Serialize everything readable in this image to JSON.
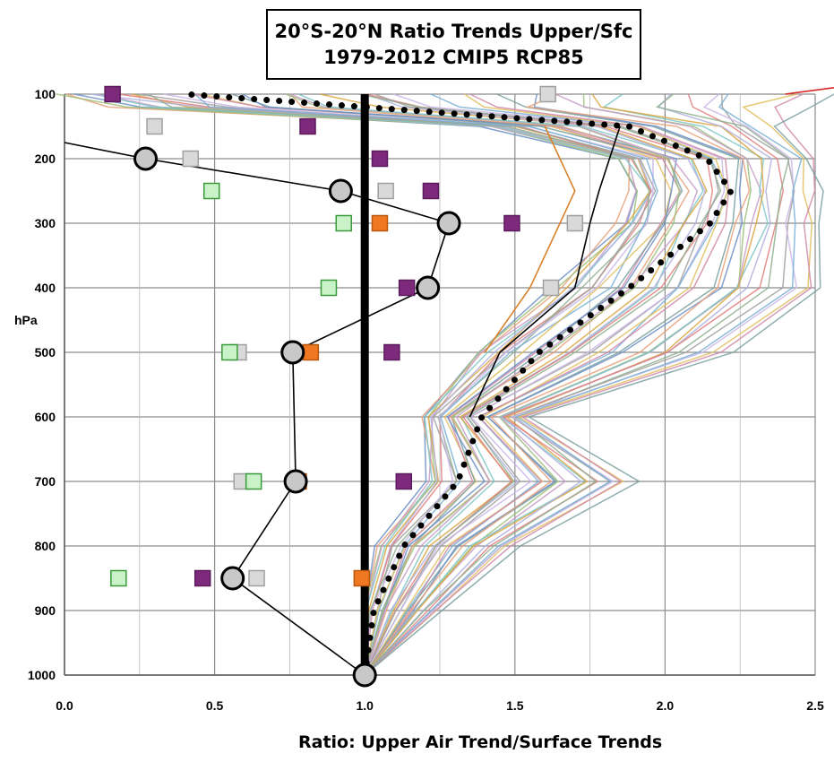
{
  "chart_data": {
    "type": "line",
    "title": [
      "20°S-20°N Ratio  Trends Upper/Sfc",
      "1979-2012 CMIP5 RCP85"
    ],
    "xlabel": "Ratio: Upper Air Trend/Surface Trends",
    "ylabel": "hPa",
    "xlim": [
      0,
      2.5
    ],
    "ylim": [
      1000,
      100
    ],
    "x_ticks": [
      "0.0",
      "0.5",
      "1.0",
      "1.5",
      "2.0",
      "2.5"
    ],
    "y_ticks": [
      "100",
      "200",
      "300",
      "400",
      "500",
      "600",
      "700",
      "800",
      "900",
      "1000"
    ],
    "grid": true,
    "legend": "none",
    "reference_line": {
      "x": 1.0,
      "color": "#000000"
    },
    "model_mean": {
      "style": "dotted",
      "color": "#000000",
      "points": [
        [
          1.0,
          1000
        ],
        [
          1.03,
          900
        ],
        [
          1.13,
          800
        ],
        [
          1.31,
          700
        ],
        [
          1.39,
          600
        ],
        [
          1.58,
          500
        ],
        [
          1.88,
          400
        ],
        [
          2.15,
          300
        ],
        [
          2.22,
          250
        ],
        [
          2.14,
          200
        ],
        [
          1.88,
          150
        ],
        [
          1.0,
          120
        ],
        [
          0.4,
          100
        ]
      ]
    },
    "model_spread_colors": [
      "#6b8fc7",
      "#e8a07a",
      "#9cc07a",
      "#c79dc7",
      "#7fc7c7",
      "#d9a441",
      "#b0b0e0",
      "#e08080",
      "#8fb08f",
      "#a0a0a0",
      "#c9b6e8",
      "#79b0d6",
      "#e0c060",
      "#d08aa8",
      "#7aa0a0"
    ],
    "model_envelope": {
      "x_min": [
        [
          1.0,
          1000
        ],
        [
          1.0,
          900
        ],
        [
          1.05,
          800
        ],
        [
          1.22,
          700
        ],
        [
          1.2,
          600
        ],
        [
          1.38,
          500
        ],
        [
          1.65,
          400
        ],
        [
          1.85,
          300
        ],
        [
          1.9,
          250
        ],
        [
          1.85,
          200
        ],
        [
          1.4,
          150
        ],
        [
          0.2,
          120
        ],
        [
          0.0,
          100
        ]
      ],
      "x_max": [
        [
          1.0,
          1000
        ],
        [
          1.25,
          900
        ],
        [
          1.5,
          800
        ],
        [
          1.9,
          700
        ],
        [
          1.55,
          600
        ],
        [
          2.2,
          500
        ],
        [
          2.5,
          400
        ],
        [
          2.5,
          300
        ],
        [
          2.5,
          250
        ],
        [
          2.5,
          200
        ],
        [
          2.4,
          150
        ],
        [
          2.5,
          100
        ]
      ]
    },
    "extra_lines": [
      {
        "color": "#000000",
        "points": [
          [
            1.85,
            150
          ],
          [
            1.78,
            250
          ],
          [
            1.75,
            300
          ],
          [
            1.7,
            400
          ],
          [
            1.45,
            500
          ],
          [
            1.35,
            600
          ]
        ]
      },
      {
        "color": "#d9822b",
        "points": [
          [
            1.6,
            150
          ],
          [
            1.7,
            250
          ],
          [
            1.65,
            300
          ],
          [
            1.55,
            400
          ],
          [
            1.4,
            500
          ]
        ]
      },
      {
        "color": "#d62728",
        "points": [
          [
            2.4,
            100
          ],
          [
            2.6,
            90
          ]
        ]
      }
    ],
    "series": [
      {
        "name": "",
        "marker": "circle",
        "fill": "#c8c8c8",
        "stroke": "#000000",
        "connected": true,
        "points": [
          [
            1.0,
            1000
          ],
          [
            0.56,
            850
          ],
          [
            0.77,
            700
          ],
          [
            0.76,
            500
          ],
          [
            1.21,
            400
          ],
          [
            1.28,
            300
          ],
          [
            0.92,
            250
          ],
          [
            0.27,
            200
          ],
          [
            0.0,
            175
          ]
        ]
      },
      {
        "name": "",
        "marker": "square",
        "fill": "#7d2a7d",
        "stroke": "#5b1a5b",
        "points": [
          [
            0.16,
            100
          ],
          [
            0.81,
            150
          ],
          [
            1.05,
            200
          ],
          [
            1.22,
            250
          ],
          [
            1.49,
            300
          ],
          [
            1.14,
            400
          ],
          [
            1.09,
            500
          ],
          [
            1.13,
            700
          ],
          [
            0.46,
            850
          ]
        ]
      },
      {
        "name": "",
        "marker": "square",
        "fill": "#d9d9d9",
        "stroke": "#a0a0a0",
        "points": [
          [
            1.61,
            100
          ],
          [
            0.3,
            150
          ],
          [
            0.42,
            200
          ],
          [
            1.07,
            250
          ],
          [
            1.7,
            300
          ],
          [
            1.62,
            400
          ],
          [
            0.58,
            500
          ],
          [
            0.59,
            700
          ],
          [
            0.64,
            850
          ]
        ]
      },
      {
        "name": "",
        "marker": "square",
        "fill": "#c9f2c9",
        "stroke": "#3a9a3a",
        "points": [
          [
            0.49,
            250
          ],
          [
            0.93,
            300
          ],
          [
            0.88,
            400
          ],
          [
            0.55,
            500
          ],
          [
            0.63,
            700
          ],
          [
            0.18,
            850
          ],
          [
            1.0,
            1000
          ]
        ]
      },
      {
        "name": "",
        "marker": "square",
        "fill": "#f07820",
        "stroke": "#b85810",
        "points": [
          [
            1.05,
            300
          ],
          [
            0.82,
            500
          ],
          [
            0.78,
            700
          ],
          [
            0.99,
            850
          ]
        ]
      }
    ]
  }
}
